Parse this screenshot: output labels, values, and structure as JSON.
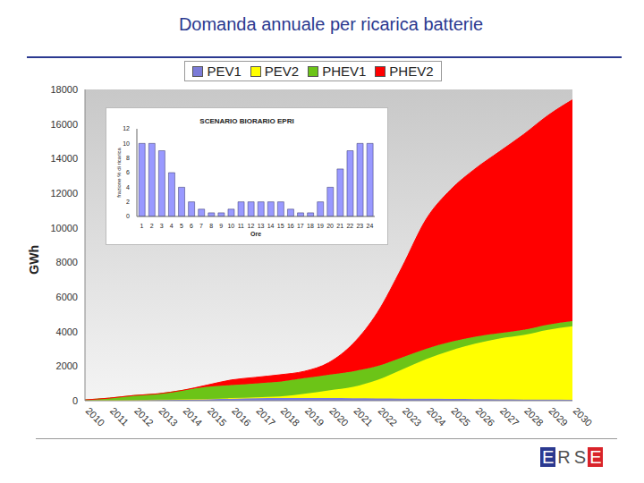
{
  "chart_data": [
    {
      "type": "area",
      "title": "Domanda annuale per ricarica batterie",
      "y_label": "GWh",
      "categories": [
        "2010",
        "2011",
        "2012",
        "2013",
        "2014",
        "2015",
        "2016",
        "2017",
        "2018",
        "2019",
        "2020",
        "2021",
        "2022",
        "2023",
        "2024",
        "2025",
        "2026",
        "2027",
        "2028",
        "2029",
        "2030"
      ],
      "series": [
        {
          "name": "PEV1",
          "color": "#7b7bd8",
          "values": [
            10,
            20,
            40,
            60,
            80,
            100,
            120,
            140,
            150,
            150,
            150,
            140,
            130,
            120,
            110,
            100,
            90,
            80,
            70,
            60,
            50
          ]
        },
        {
          "name": "PEV2",
          "color": "#ffff00",
          "values": [
            0,
            0,
            0,
            0,
            0,
            0,
            30,
            60,
            100,
            250,
            450,
            660,
            1070,
            1680,
            2290,
            2800,
            3210,
            3520,
            3730,
            4040,
            4250
          ]
        },
        {
          "name": "PHEV1",
          "color": "#6cc417",
          "values": [
            40,
            130,
            260,
            340,
            520,
            700,
            750,
            800,
            850,
            900,
            900,
            900,
            800,
            700,
            600,
            500,
            400,
            300,
            300,
            300,
            300
          ]
        },
        {
          "name": "PHEV2",
          "color": "#ff0000",
          "values": [
            0,
            0,
            0,
            0,
            0,
            100,
            300,
            350,
            400,
            400,
            700,
            1600,
            3100,
            5200,
            7500,
            8800,
            9700,
            10500,
            11300,
            12100,
            12800
          ]
        }
      ],
      "ylim": [
        0,
        18000
      ],
      "yticks": [
        0,
        2000,
        4000,
        6000,
        8000,
        10000,
        12000,
        14000,
        16000,
        18000
      ],
      "stacked": true,
      "grid": false,
      "legend": "top"
    },
    {
      "type": "bar",
      "title": "SCENARIO BIORARIO EPRI",
      "x_label": "Ore",
      "y_label": "frazione % di ricarica",
      "categories": [
        1,
        2,
        3,
        4,
        5,
        6,
        7,
        8,
        9,
        10,
        11,
        12,
        13,
        14,
        15,
        16,
        17,
        18,
        19,
        20,
        21,
        22,
        23,
        24
      ],
      "values": [
        10,
        10,
        9,
        6,
        4,
        2,
        1,
        0.5,
        0.5,
        1,
        2,
        2,
        2,
        2,
        2,
        1,
        0.5,
        0.5,
        2,
        4,
        6.5,
        9,
        10,
        10
      ],
      "color": "#9999ff",
      "ylim": [
        0,
        12
      ],
      "yticks": [
        0,
        2,
        4,
        6,
        8,
        10,
        12
      ],
      "grid": false
    }
  ],
  "logo": "ERSE"
}
